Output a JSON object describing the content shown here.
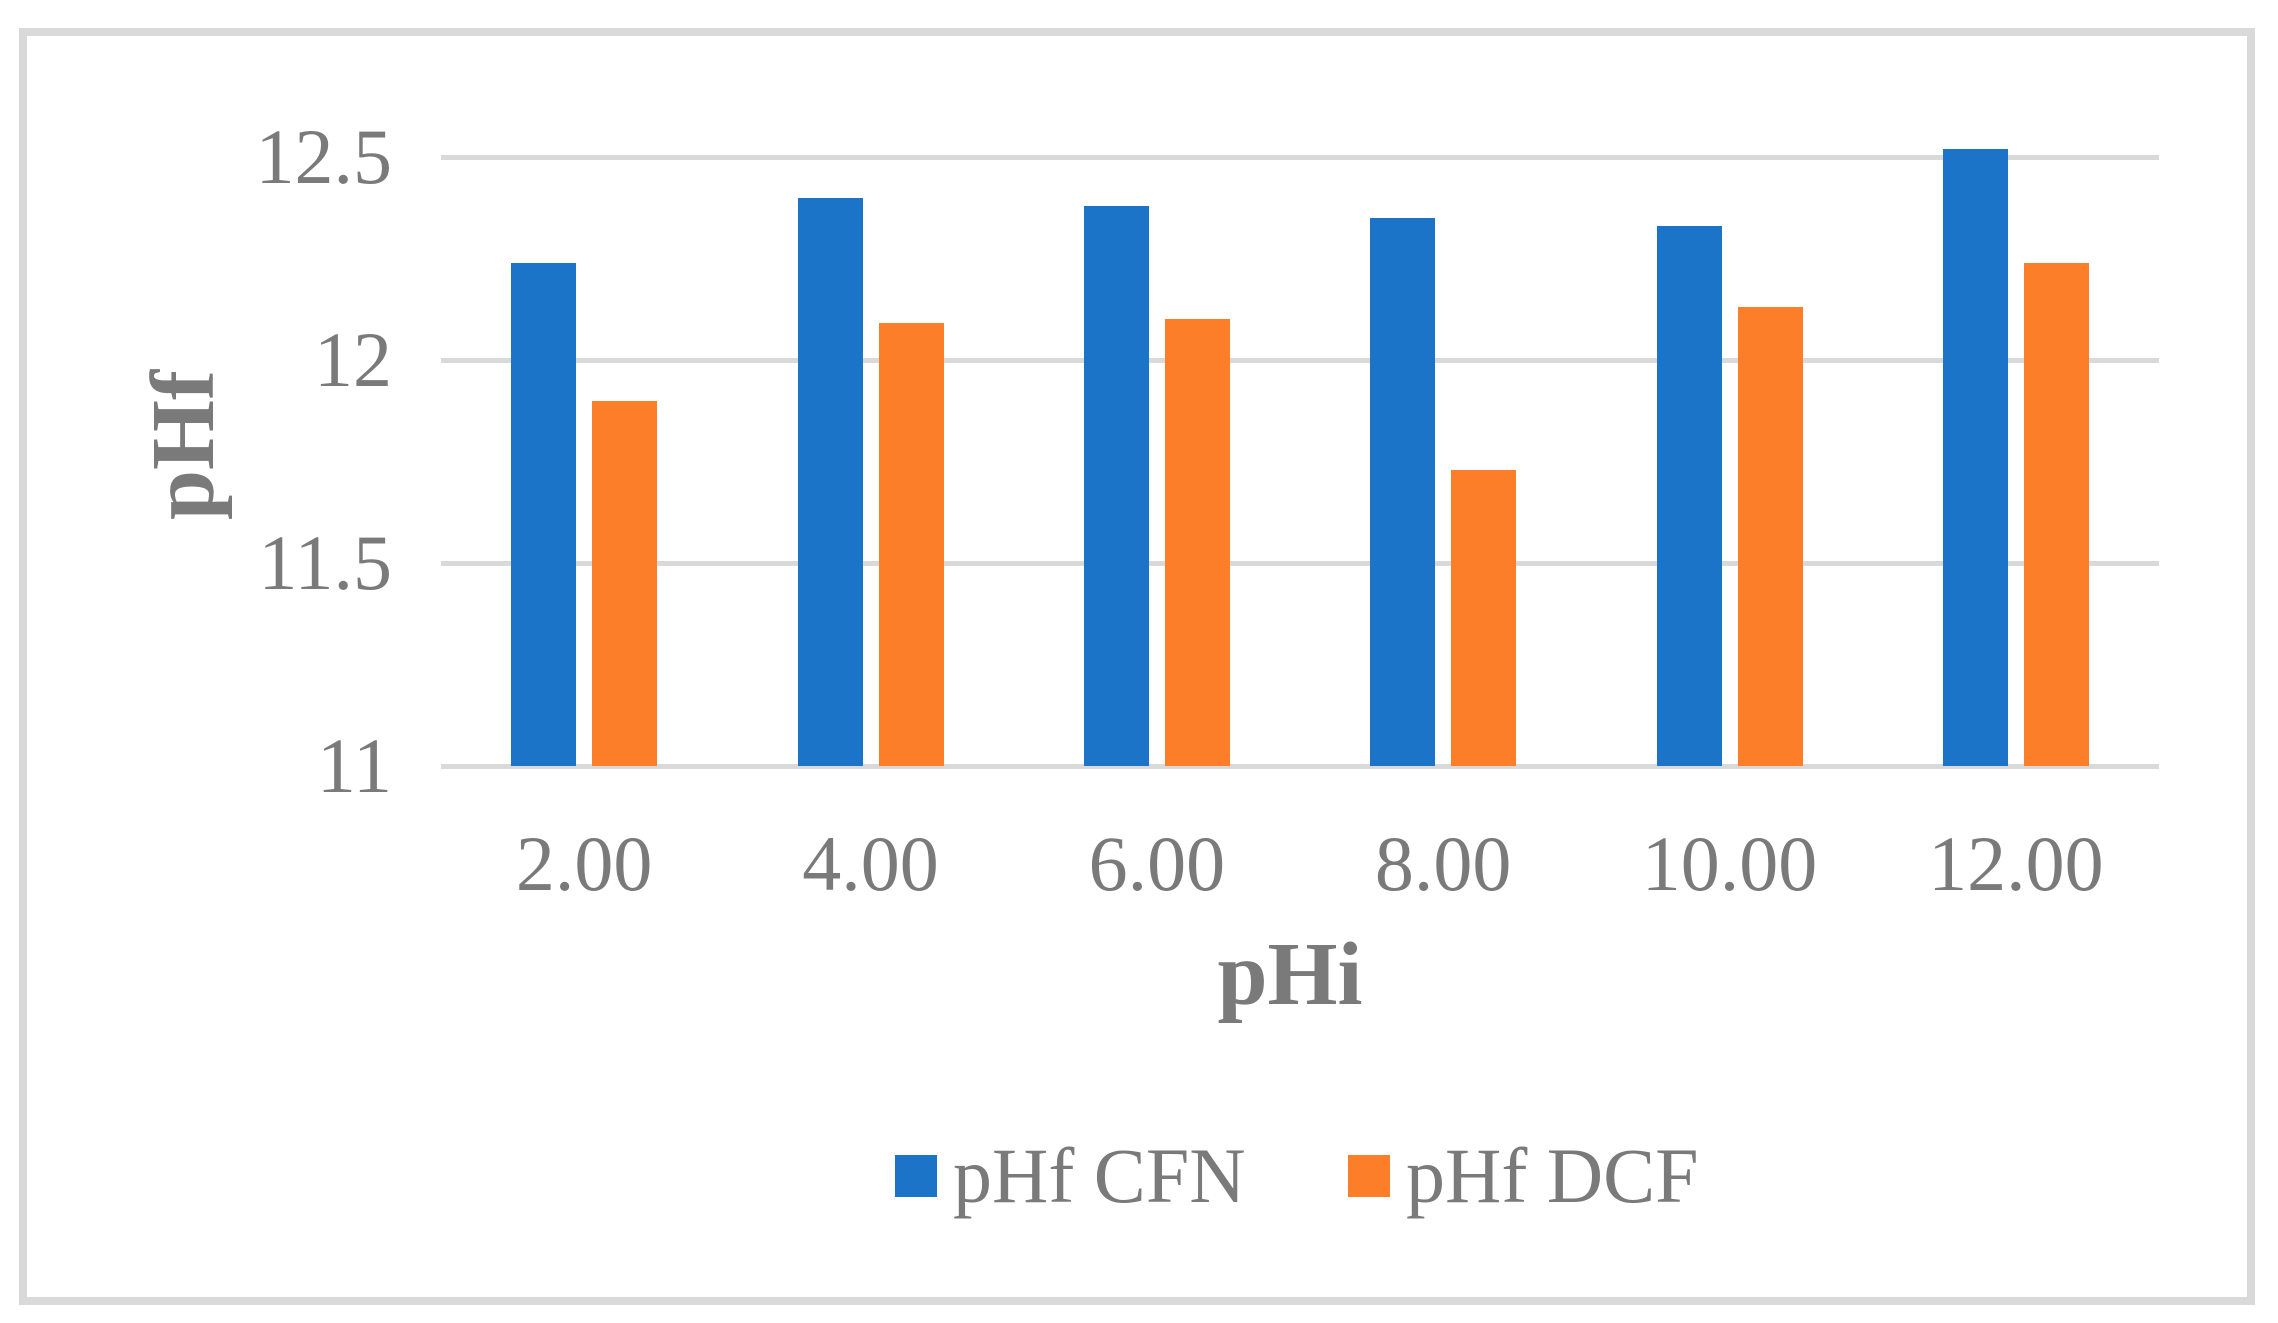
{
  "chart_data": {
    "type": "bar",
    "title": "",
    "categories": [
      "2.00",
      "4.00",
      "6.00",
      "8.00",
      "10.00",
      "12.00"
    ],
    "series": [
      {
        "name": "pHf CFN",
        "color": "#1B74C8",
        "values": [
          12.24,
          12.4,
          12.38,
          12.35,
          12.33,
          12.52
        ]
      },
      {
        "name": "pHf DCF",
        "color": "#FD7E28",
        "values": [
          11.9,
          12.09,
          12.1,
          11.73,
          12.13,
          12.24
        ]
      }
    ],
    "xlabel": "pHi",
    "ylabel": "pHf",
    "yticks": [
      11,
      11.5,
      12,
      12.5
    ],
    "ytick_labels": [
      "11",
      "11.5",
      "12",
      "12.5"
    ],
    "ylim": [
      11,
      12.6
    ],
    "grid": "horizontal",
    "legend_position": "bottom",
    "colors": {
      "gridline": "#D9D9D9",
      "frame_border": "#D9D9D9",
      "text": "#7A7A7A",
      "background": "#FFFFFF"
    }
  }
}
